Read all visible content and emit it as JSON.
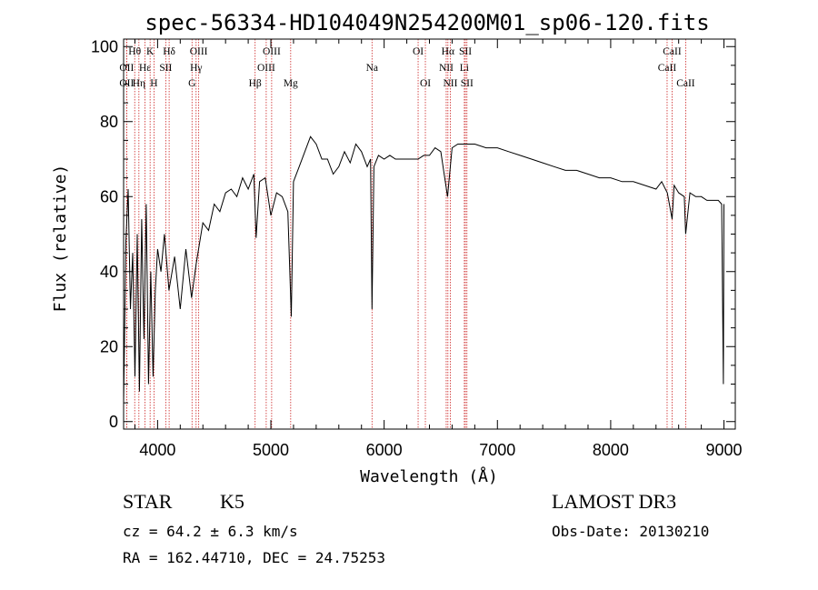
{
  "chart_data": {
    "type": "line",
    "title": "spec-56334-HD104049N254200M01_sp06-120.fits",
    "xlabel": "Wavelength (Å)",
    "ylabel": "Flux (relative)",
    "xlim": [
      3700,
      9100
    ],
    "ylim": [
      -2,
      102
    ],
    "xticks": [
      4000,
      5000,
      6000,
      7000,
      8000,
      9000
    ],
    "yticks": [
      0,
      20,
      40,
      60,
      80,
      100
    ],
    "series": [
      {
        "x": [
          3700,
          3720,
          3740,
          3760,
          3780,
          3800,
          3820,
          3840,
          3860,
          3880,
          3900,
          3920,
          3940,
          3960,
          3980,
          4000,
          4030,
          4060,
          4100,
          4150,
          4200,
          4250,
          4300,
          4340,
          4400,
          4450,
          4500,
          4550,
          4600,
          4650,
          4700,
          4750,
          4800,
          4850,
          4870,
          4900,
          4950,
          5000,
          5050,
          5100,
          5150,
          5180,
          5200,
          5250,
          5300,
          5350,
          5400,
          5450,
          5500,
          5550,
          5600,
          5650,
          5700,
          5750,
          5800,
          5850,
          5880,
          5893,
          5910,
          5950,
          6000,
          6050,
          6100,
          6150,
          6200,
          6250,
          6300,
          6350,
          6400,
          6450,
          6500,
          6560,
          6600,
          6650,
          6700,
          6750,
          6800,
          6900,
          7000,
          7100,
          7200,
          7300,
          7400,
          7500,
          7600,
          7700,
          7800,
          7900,
          8000,
          8100,
          8200,
          8300,
          8400,
          8450,
          8500,
          8542,
          8560,
          8600,
          8650,
          8662,
          8700,
          8750,
          8800,
          8850,
          8900,
          8950,
          8980,
          8995,
          9000
        ],
        "y": [
          5,
          48,
          62,
          30,
          45,
          12,
          50,
          8,
          54,
          22,
          58,
          10,
          40,
          12,
          35,
          46,
          40,
          50,
          35,
          44,
          30,
          46,
          33,
          42,
          53,
          51,
          58,
          56,
          61,
          62,
          60,
          65,
          62,
          66,
          49,
          64,
          65,
          55,
          61,
          60,
          56,
          28,
          64,
          68,
          72,
          76,
          74,
          70,
          70,
          66,
          68,
          72,
          69,
          74,
          72,
          68,
          70,
          30,
          68,
          71,
          70,
          71,
          70,
          70,
          70,
          70,
          70,
          71,
          71,
          73,
          72,
          60,
          73,
          74,
          74,
          74,
          74,
          73,
          73,
          72,
          71,
          70,
          69,
          68,
          67,
          67,
          66,
          65,
          65,
          64,
          64,
          63,
          62,
          64,
          61,
          54,
          63,
          61,
          60,
          50,
          61,
          60,
          60,
          59,
          59,
          59,
          58,
          10,
          58
        ]
      }
    ],
    "lines": [
      {
        "label": "Hθ",
        "x": 3798,
        "row": 1
      },
      {
        "label": "OII",
        "x": 3727,
        "row": 2
      },
      {
        "label": "OII",
        "x": 3727,
        "row": 3
      },
      {
        "label": "Hε",
        "x": 3889,
        "row": 2
      },
      {
        "label": "Hη",
        "x": 3835,
        "row": 3
      },
      {
        "label": "K",
        "x": 3934,
        "row": 1
      },
      {
        "label": "H",
        "x": 3968,
        "row": 3
      },
      {
        "label": "SII",
        "x": 4072,
        "row": 2
      },
      {
        "label": "Hδ",
        "x": 4102,
        "row": 1
      },
      {
        "label": "OIII",
        "x": 4363,
        "row": 1
      },
      {
        "label": "Hγ",
        "x": 4340,
        "row": 2
      },
      {
        "label": "G",
        "x": 4304,
        "row": 3
      },
      {
        "label": "Hβ",
        "x": 4861,
        "row": 3
      },
      {
        "label": "OIII",
        "x": 5007,
        "row": 1
      },
      {
        "label": "OIII",
        "x": 4959,
        "row": 2
      },
      {
        "label": "Mg",
        "x": 5175,
        "row": 3
      },
      {
        "label": "Na",
        "x": 5893,
        "row": 2
      },
      {
        "label": "OI",
        "x": 6300,
        "row": 1
      },
      {
        "label": "OI",
        "x": 6364,
        "row": 3
      },
      {
        "label": "Hα",
        "x": 6563,
        "row": 1
      },
      {
        "label": "NII",
        "x": 6548,
        "row": 2
      },
      {
        "label": "NII",
        "x": 6584,
        "row": 3
      },
      {
        "label": "SII",
        "x": 6717,
        "row": 1
      },
      {
        "label": "Li",
        "x": 6708,
        "row": 2
      },
      {
        "label": "SII",
        "x": 6731,
        "row": 3
      },
      {
        "label": "CaII",
        "x": 8542,
        "row": 1
      },
      {
        "label": "CaII",
        "x": 8498,
        "row": 2
      },
      {
        "label": "CaII",
        "x": 8662,
        "row": 3
      }
    ],
    "grid": false,
    "legend": false
  },
  "info": {
    "class": "STAR",
    "subclass": "K5",
    "survey": "LAMOST DR3",
    "cz": "cz = 64.2 ± 6.3 km/s",
    "obs_date": "Obs-Date: 20130210",
    "radec": "RA = 162.44710, DEC =  24.75253"
  },
  "colors": {
    "spectrum": "#000000",
    "line_markers": "#cc2222",
    "frame": "#000000"
  }
}
